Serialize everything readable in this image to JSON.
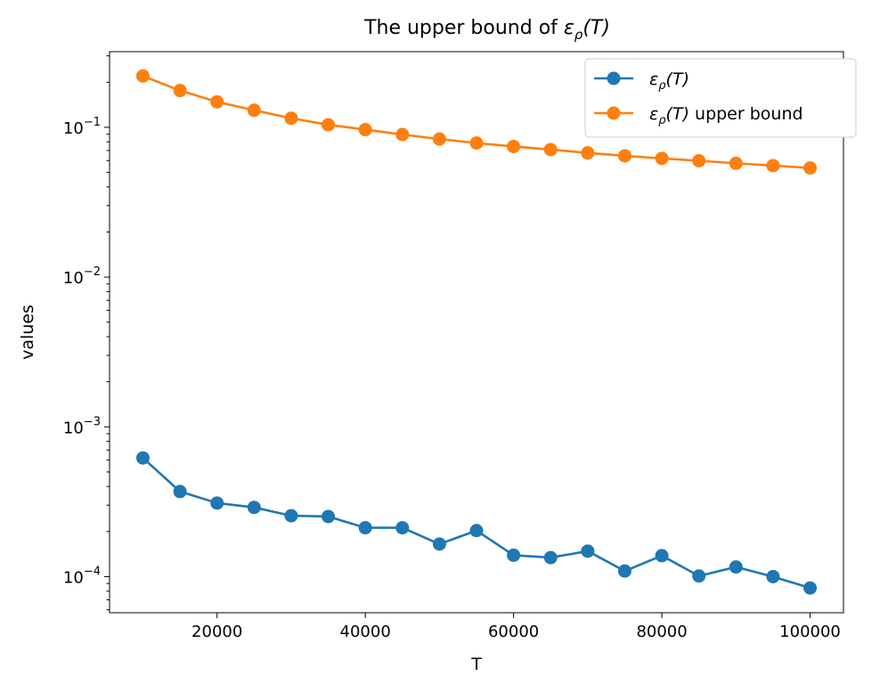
{
  "chart_data": {
    "type": "line",
    "title": {
      "prefix": "The upper bound of ",
      "symbol": "ε",
      "subscript": "ρ",
      "suffix": "(T)"
    },
    "xlabel": "T",
    "ylabel": "values",
    "yscale": "log",
    "xlim": [
      5500,
      104500
    ],
    "ylim": [
      5.74e-05,
      0.32
    ],
    "x_ticks": [
      20000,
      40000,
      60000,
      80000,
      100000
    ],
    "x_tick_labels": [
      "20000",
      "40000",
      "60000",
      "80000",
      "100000"
    ],
    "y_ticks": [
      0.0001,
      0.001,
      0.01,
      0.1
    ],
    "y_tick_labels": [
      {
        "base": "10",
        "exp": "−4"
      },
      {
        "base": "10",
        "exp": "−3"
      },
      {
        "base": "10",
        "exp": "−2"
      },
      {
        "base": "10",
        "exp": "−1"
      }
    ],
    "x": [
      10000,
      15000,
      20000,
      25000,
      30000,
      35000,
      40000,
      45000,
      50000,
      55000,
      60000,
      65000,
      70000,
      75000,
      80000,
      85000,
      90000,
      95000,
      100000
    ],
    "series": [
      {
        "name": "ε_ρ(T)",
        "label": {
          "symbol": "ε",
          "subscript": "ρ",
          "suffix": "(T)",
          "extra": ""
        },
        "color": "#1f77b4",
        "values": [
          0.00062,
          0.00037,
          0.00031,
          0.00029,
          0.000255,
          0.000252,
          0.000212,
          0.000212,
          0.000165,
          0.000203,
          0.000139,
          0.000134,
          0.000148,
          0.000109,
          0.000138,
          0.000101,
          0.000116,
          0.0001,
          8.4e-05
        ]
      },
      {
        "name": "ε_ρ(T) upper bound",
        "label": {
          "symbol": "ε",
          "subscript": "ρ",
          "suffix": "(T)",
          "extra": " upper bound"
        },
        "color": "#ff7f0e",
        "values": [
          0.22,
          0.176,
          0.148,
          0.13,
          0.115,
          0.104,
          0.0965,
          0.0895,
          0.0835,
          0.0785,
          0.0745,
          0.071,
          0.0675,
          0.0645,
          0.062,
          0.0598,
          0.0575,
          0.0555,
          0.0535
        ]
      }
    ],
    "legend_position": "top-right"
  }
}
